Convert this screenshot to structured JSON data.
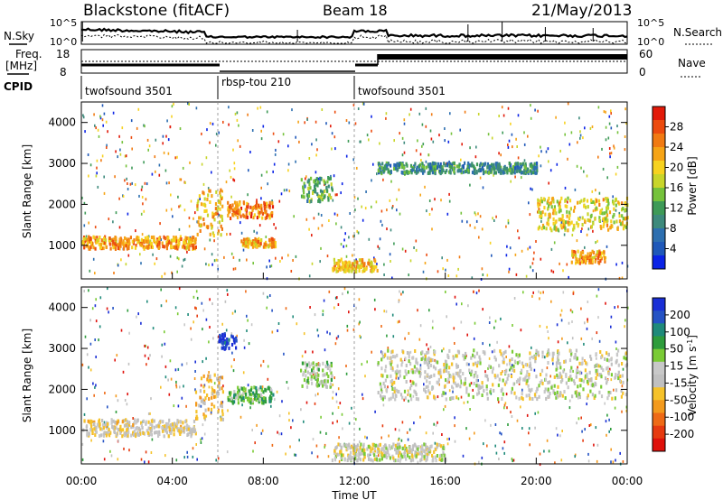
{
  "header": {
    "radar_title": "Blackstone (fitACF)",
    "beam": "Beam 18",
    "date": "21/May/2013"
  },
  "top_panels": {
    "nsky_label": "N.Sky",
    "nsearch_label": "N.Search",
    "count_ticks": [
      "10^5",
      "10^0"
    ],
    "freq_label_1": "Freq.",
    "freq_label_2": "[MHz]",
    "freq_ticks": [
      "18",
      "8"
    ],
    "nave_label": "Nave",
    "nave_ticks": [
      "60",
      "0"
    ],
    "cpid_label": "CPID",
    "cpid_segments": [
      {
        "label": "twofsound 3501",
        "start_h": 0,
        "end_h": 6
      },
      {
        "label": "rbsp-tou 210",
        "start_h": 6,
        "end_h": 12
      },
      {
        "label": "twofsound 3501",
        "start_h": 12,
        "end_h": 24
      }
    ]
  },
  "axes": {
    "ylabel": "Slant Range [km]",
    "xlabel": "Time UT",
    "x_ticks": [
      "00:00",
      "04:00",
      "08:00",
      "12:00",
      "16:00",
      "20:00",
      "00:00"
    ],
    "y_ticks": [
      "1000",
      "2000",
      "3000",
      "4000"
    ]
  },
  "colorbars": {
    "power": {
      "label": "Power [dB]",
      "ticks": [
        "4",
        "8",
        "12",
        "16",
        "20",
        "24",
        "28"
      ],
      "colors": [
        "#0b23e6",
        "#1f58b9",
        "#2d6fb0",
        "#3d8a7c",
        "#3e9a57",
        "#75c23b",
        "#c8d52a",
        "#f7d21f",
        "#f6a416",
        "#f17a12",
        "#ec4b0e",
        "#e21a09"
      ]
    },
    "velocity": {
      "label_main": "Velocity [m s",
      "label_sup": "-1",
      "label_end": "]",
      "ticks": [
        "200",
        "100",
        "50",
        "15",
        "-15",
        "-50",
        "-100",
        "-200"
      ],
      "colors": [
        "#1a2fd6",
        "#2553c4",
        "#1f8a7a",
        "#2e9c3c",
        "#7acb35",
        "#c8c8c8",
        "#c0c0c0",
        "#f5c22a",
        "#f39a1d",
        "#ee6a16",
        "#e63a10",
        "#df110b"
      ]
    }
  },
  "chart_data": [
    {
      "type": "heatmap",
      "title": "Power",
      "x_range_hours": [
        0,
        24
      ],
      "ylim_km": [
        180,
        4500
      ],
      "colorbar_range_db": [
        0,
        30
      ],
      "features": [
        {
          "name": "band",
          "t0": 0,
          "t1": 5.0,
          "r0": 950,
          "r1": 1250,
          "value": 22
        },
        {
          "name": "band",
          "t0": 5.0,
          "t1": 6.2,
          "r0": 1250,
          "r1": 2400,
          "value": 20
        },
        {
          "name": "band",
          "t0": 6.4,
          "t1": 8.4,
          "r0": 1700,
          "r1": 2100,
          "value": 24
        },
        {
          "name": "band",
          "t0": 7.0,
          "t1": 8.5,
          "r0": 1000,
          "r1": 1200,
          "value": 21
        },
        {
          "name": "band",
          "t0": 9.6,
          "t1": 11.0,
          "r0": 2100,
          "r1": 2700,
          "value": 12
        },
        {
          "name": "band",
          "t0": 13.0,
          "t1": 20.0,
          "r0": 2800,
          "r1": 3050,
          "value": 9
        },
        {
          "name": "band",
          "t0": 20.0,
          "t1": 24.0,
          "r0": 1400,
          "r1": 2200,
          "value": 18
        },
        {
          "name": "band",
          "t0": 11.0,
          "t1": 13.0,
          "r0": 400,
          "r1": 700,
          "value": 20
        },
        {
          "name": "band",
          "t0": 21.5,
          "t1": 23.0,
          "r0": 600,
          "r1": 900,
          "value": 22
        }
      ]
    },
    {
      "type": "heatmap",
      "title": "Velocity",
      "x_range_hours": [
        0,
        24
      ],
      "ylim_km": [
        180,
        4500
      ],
      "colorbar_range_ms": [
        -250,
        250
      ],
      "features": [
        {
          "name": "band",
          "t0": 0,
          "t1": 5.0,
          "r0": 900,
          "r1": 1300,
          "value": -30
        },
        {
          "name": "band",
          "t0": 5.0,
          "t1": 6.2,
          "r0": 1300,
          "r1": 2400,
          "value": -60
        },
        {
          "name": "band",
          "t0": 6.4,
          "t1": 8.4,
          "r0": 1700,
          "r1": 2100,
          "value": 80
        },
        {
          "name": "band",
          "t0": 9.6,
          "t1": 11.0,
          "r0": 2100,
          "r1": 2700,
          "value": 40
        },
        {
          "name": "band",
          "t0": 6.0,
          "t1": 6.8,
          "r0": 3000,
          "r1": 3400,
          "value": 220
        },
        {
          "name": "band",
          "t0": 13.0,
          "t1": 24.0,
          "r0": 1800,
          "r1": 3000,
          "value": 0
        },
        {
          "name": "band",
          "t0": 11.0,
          "t1": 16.0,
          "r0": 300,
          "r1": 700,
          "value": 0
        }
      ]
    }
  ]
}
